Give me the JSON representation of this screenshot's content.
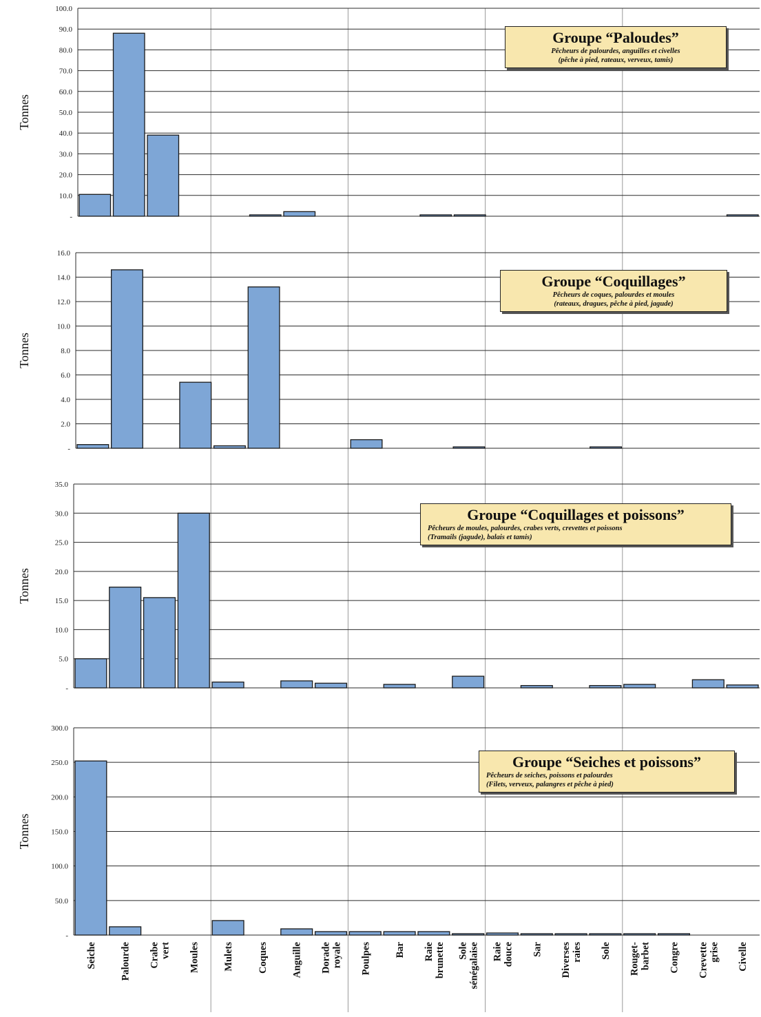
{
  "chart_data": [
    {
      "type": "bar",
      "title": "Groupe “Paloudes”",
      "subtitle_line1": "Pêcheurs de palourdes, anguilles et civelles",
      "subtitle_line2": "(pêche à pied, rateaux, verveux, tamis)",
      "ylabel": "Tonnes",
      "ylim": [
        0,
        100
      ],
      "yticks": [
        "-",
        "10.0",
        "20.0",
        "30.0",
        "40.0",
        "50.0",
        "60.0",
        "70.0",
        "80.0",
        "90.0",
        "100.0"
      ],
      "values": [
        10.5,
        88.0,
        39.0,
        0.0,
        0.0,
        0.3,
        2.2,
        0.0,
        0.0,
        0.0,
        0.3,
        0.3,
        0.0,
        0.0,
        0.0,
        0.0,
        0.0,
        0.0,
        0.0,
        0.3
      ]
    },
    {
      "type": "bar",
      "title": "Groupe “Coquillages”",
      "subtitle_line1": "Pêcheurs de coques, palourdes et moules",
      "subtitle_line2": "(rateaux, dragues, pêche à pied, jagude)",
      "ylabel": "Tonnes",
      "ylim": [
        0,
        16
      ],
      "yticks": [
        "-",
        "2.0",
        "4.0",
        "6.0",
        "8.0",
        "10.0",
        "12.0",
        "14.0",
        "16.0"
      ],
      "values": [
        0.3,
        14.6,
        0.0,
        5.4,
        0.2,
        13.2,
        0.0,
        0.0,
        0.7,
        0.0,
        0.0,
        0.1,
        0.0,
        0.0,
        0.0,
        0.1,
        0.0,
        0.0,
        0.0,
        0.0
      ]
    },
    {
      "type": "bar",
      "title": "Groupe “Coquillages et poissons”",
      "subtitle_line1": "Pêcheurs de moules, palourdes, crabes verts, crevettes et poissons",
      "subtitle_line2": "(Tramails (jagude), balais et tamis)",
      "ylabel": "Tonnes",
      "ylim": [
        0,
        35
      ],
      "yticks": [
        "-",
        "5.0",
        "10.0",
        "15.0",
        "20.0",
        "25.0",
        "30.0",
        "35.0"
      ],
      "values": [
        5.0,
        17.3,
        15.5,
        30.0,
        1.0,
        0.0,
        1.2,
        0.8,
        0.0,
        0.6,
        0.0,
        2.0,
        0.0,
        0.4,
        0.0,
        0.4,
        0.6,
        0.0,
        1.4,
        0.5
      ]
    },
    {
      "type": "bar",
      "title": "Groupe “Seiches et poissons”",
      "subtitle_line1": "Pêcheurs de seiches, poissons et palourdes",
      "subtitle_line2": "(Filets, verveux, palangres et pêche à pied)",
      "ylabel": "Tonnes",
      "ylim": [
        0,
        300
      ],
      "yticks": [
        "-",
        "50.0",
        "100.0",
        "150.0",
        "200.0",
        "250.0",
        "300.0"
      ],
      "values": [
        252.0,
        12.0,
        0.0,
        0.0,
        21.0,
        0.0,
        9.0,
        5.0,
        5.0,
        5.0,
        5.0,
        2.0,
        3.0,
        2.0,
        1.0,
        1.0,
        1.0,
        2.0,
        0.0,
        0.0
      ]
    }
  ],
  "categories": [
    [
      "Seiche"
    ],
    [
      "Palourde"
    ],
    [
      "Crabe",
      "vert"
    ],
    [
      "Moules"
    ],
    [
      "Mulets"
    ],
    [
      "Coques"
    ],
    [
      "Anguille"
    ],
    [
      "Dorade",
      "royale"
    ],
    [
      "Poulpes"
    ],
    [
      "Bar"
    ],
    [
      "Raie",
      "brunette"
    ],
    [
      "Sole",
      "sénégalaise"
    ],
    [
      "Raie",
      "douce"
    ],
    [
      "Sar"
    ],
    [
      "Diverses",
      "raies"
    ],
    [
      "Sole"
    ],
    [
      "Rouget-",
      "barbet"
    ],
    [
      "Congre"
    ],
    [
      "Crevette",
      "grise"
    ],
    [
      "Civelle"
    ]
  ],
  "colors": {
    "bar": "#7ea6d6",
    "bar_stroke": "#1a1a1a",
    "gridline": "#2a2a2a",
    "separator": "#999999",
    "box_fill": "#f8e7ae"
  }
}
